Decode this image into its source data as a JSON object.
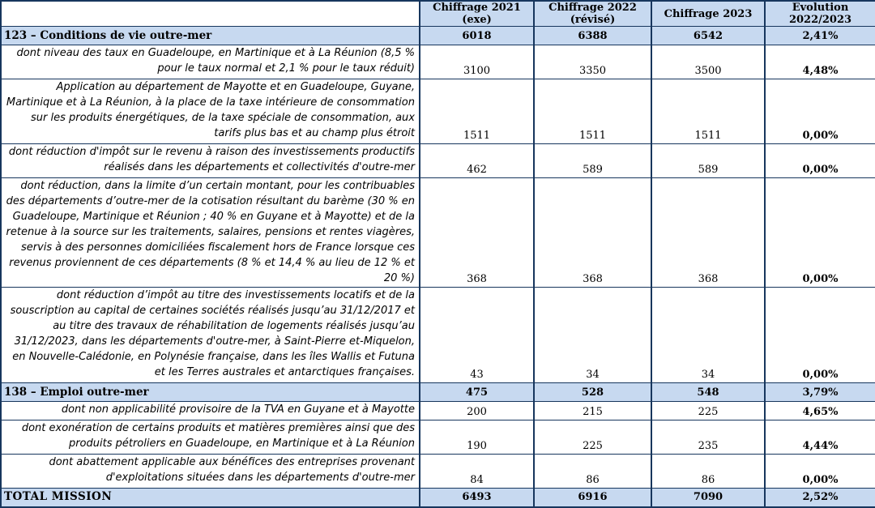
{
  "header": {
    "columns": [
      "",
      "Chiffrage 2021 (exe)",
      "Chiffrage 2022 (révisé)",
      "Chiffrage 2023",
      "Evolution 2022/2023"
    ]
  },
  "rows": [
    {
      "type": "section",
      "label": "123 – Conditions de vie outre-mer",
      "values": [
        "6018",
        "6388",
        "6542"
      ],
      "evolution": "2,41%",
      "lines": 1
    },
    {
      "type": "detail",
      "label": "dont niveau des taux en Guadeloupe, en Martinique et à La Réunion (8,5 % pour le taux normal et 2,1 % pour le taux réduit)",
      "values": [
        "3100",
        "3350",
        "3500"
      ],
      "evolution": "4,48%",
      "lines": 2
    },
    {
      "type": "detail",
      "label": "Application au département de Mayotte et en Guadeloupe, Guyane, Martinique et à La Réunion, à la place de la taxe intérieure de consommation sur les produits énergétiques, de la taxe spéciale de consommation, aux tarifs plus bas et au champ plus étroit",
      "values": [
        "1511",
        "1511",
        "1511"
      ],
      "evolution": "0,00%",
      "lines": 4
    },
    {
      "type": "detail",
      "label": "dont réduction d'impôt sur le revenu à raison des investissements productifs réalisés dans les départements et collectivités d'outre-mer",
      "values": [
        "462",
        "589",
        "589"
      ],
      "evolution": "0,00%",
      "lines": 2
    },
    {
      "type": "detail",
      "label": "dont réduction, dans la limite d’un certain montant, pour les contribuables des départements d’outre-mer de la cotisation résultant du barème (30 % en Guadeloupe, Martinique et Réunion ; 40 % en Guyane et à Mayotte) et de la retenue à la source sur les traitements, salaires, pensions et rentes viagères, servis à des personnes domiciliées fiscalement hors de France lorsque ces revenus proviennent de ces départements (8 % et 14,4 % au lieu de 12 % et 20 %)",
      "values": [
        "368",
        "368",
        "368"
      ],
      "evolution": "0,00%",
      "lines": 6
    },
    {
      "type": "detail",
      "label": "dont réduction d’impôt au titre des investissements locatifs et de la souscription au capital de certaines sociétés réalisés jusqu’au 31/12/2017 et au titre des travaux de réhabilitation de logements réalisés jusqu’au 31/12/2023, dans les départements d'outre-mer, à Saint-Pierre  et-Miquelon, en Nouvelle-Calédonie, en Polynésie française, dans les îles Wallis et Futuna et les Terres australes et antarctiques françaises.",
      "values": [
        "43",
        "34",
        "34"
      ],
      "evolution": "0,00%",
      "lines": 6
    },
    {
      "type": "section",
      "label": "138 – Emploi outre-mer",
      "values": [
        "475",
        "528",
        "548"
      ],
      "evolution": "3,79%",
      "lines": 1
    },
    {
      "type": "detail",
      "label": "dont non applicabilité provisoire de la TVA en Guyane et à Mayotte",
      "values": [
        "200",
        "215",
        "225"
      ],
      "evolution": "4,65%",
      "lines": 1
    },
    {
      "type": "detail",
      "label": "dont exonération de certains produits et matières premières ainsi que des produits pétroliers en Guadeloupe, en Martinique et à La Réunion",
      "values": [
        "190",
        "225",
        "235"
      ],
      "evolution": "4,44%",
      "lines": 2
    },
    {
      "type": "detail",
      "label": "dont abattement applicable aux bénéfices des entreprises provenant d'exploitations situées dans les départements d'outre-mer",
      "values": [
        "84",
        "86",
        "86"
      ],
      "evolution": "0,00%",
      "lines": 2
    },
    {
      "type": "total",
      "label": "TOTAL MISSION",
      "values": [
        "6493",
        "6916",
        "7090"
      ],
      "evolution": "2,52%",
      "lines": 1
    }
  ],
  "colors": {
    "band_blue": "#c7d9f0",
    "border_navy": "#17365d",
    "text_black": "#000000"
  }
}
